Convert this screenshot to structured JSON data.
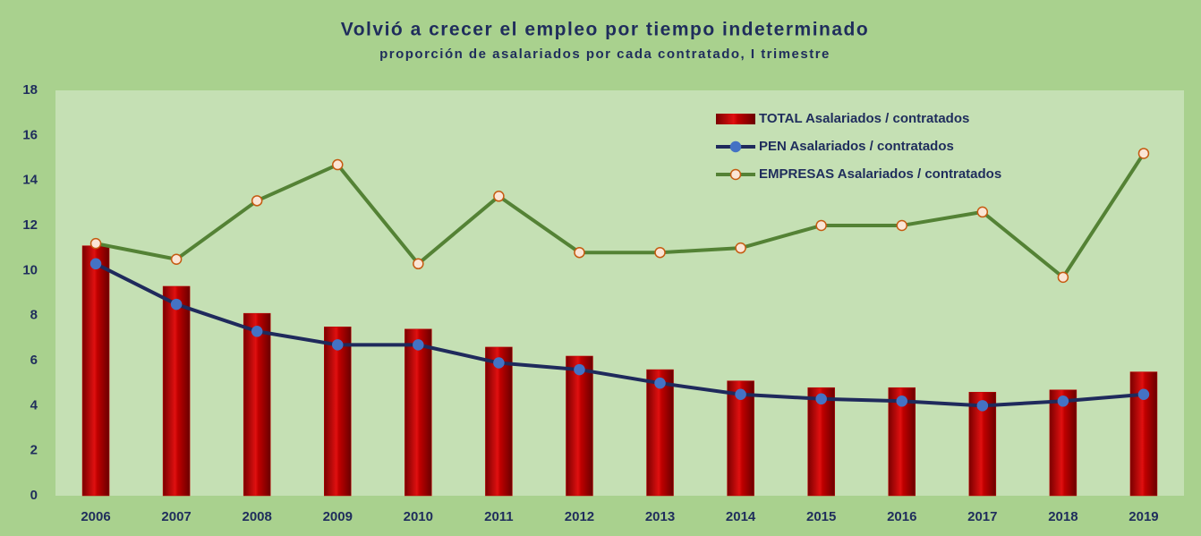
{
  "chart_data": {
    "type": "bar_line",
    "title": "Volvió a crecer el empleo por tiempo indeterminado",
    "subtitle": "proporción de asalariados por cada contratado, I trimestre",
    "categories": [
      "2006",
      "2007",
      "2008",
      "2009",
      "2010",
      "2011",
      "2012",
      "2013",
      "2014",
      "2015",
      "2016",
      "2017",
      "2018",
      "2019"
    ],
    "series": [
      {
        "name": "TOTAL Asalariados / contratados",
        "type": "bar",
        "color": "#c00000",
        "values": [
          11.1,
          9.3,
          8.1,
          7.5,
          7.4,
          6.6,
          6.2,
          5.6,
          5.1,
          4.8,
          4.8,
          4.6,
          4.7,
          5.5
        ]
      },
      {
        "name": "PEN Asalariados / contratados",
        "type": "line",
        "color": "#1f2a5c",
        "marker_color": "#4472c4",
        "values": [
          10.3,
          8.5,
          7.3,
          6.7,
          6.7,
          5.9,
          5.6,
          5.0,
          4.5,
          4.3,
          4.2,
          4.0,
          4.2,
          4.5
        ]
      },
      {
        "name": "EMPRESAS Asalariados / contratados",
        "type": "line",
        "color": "#548235",
        "marker_color": "#fbe5d6",
        "values": [
          11.2,
          10.5,
          13.1,
          14.7,
          10.3,
          13.3,
          10.8,
          10.8,
          11.0,
          12.0,
          12.0,
          12.6,
          9.7,
          15.2
        ]
      }
    ],
    "ylim": [
      0,
      18
    ],
    "yticks": [
      0,
      2,
      4,
      6,
      8,
      10,
      12,
      14,
      16,
      18
    ],
    "grid": false,
    "legend": "upper right"
  }
}
